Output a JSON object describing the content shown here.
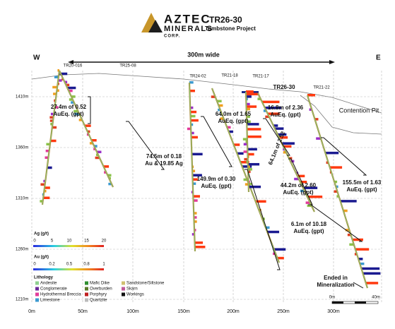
{
  "header": {
    "logo": [
      "AZTEC",
      "MINERALS",
      "CORP."
    ],
    "title": "TR26-30",
    "subtitle": "Tombstone Project"
  },
  "section": {
    "west": "W",
    "east": "E",
    "width_label": "300m wide",
    "elevations": [
      "1410m",
      "1360m",
      "1310m",
      "1260m",
      "1210m"
    ],
    "distances": [
      "0m",
      "50m",
      "100m",
      "150m",
      "200m",
      "250m",
      "300m"
    ],
    "drill_holes": [
      "TR20-016",
      "TR25-08",
      "TR24-02",
      "TR21-18",
      "TR21-17",
      "TR26-30",
      "TR21-22"
    ],
    "pit_label": "Contention Pit",
    "annotations": [
      [
        "27.4m of 0.52",
        "AuEq. (gpt)"
      ],
      [
        "74.5m of 0.18",
        "Au & 19.85 Ag"
      ],
      [
        "64.0m of 1.65",
        "AuEq. (gpt)"
      ],
      [
        "149.9m of 0.30",
        "AuEq. (gpt)"
      ],
      [
        "16.8m of 2.36",
        "AuEq. (gpt)"
      ],
      [
        "64.1m of 2.52"
      ],
      [
        "44.2m of 2.60",
        "AuEq. (gpt)"
      ],
      [
        "155.5m of 1.63",
        "AuEq. (gpt)"
      ],
      [
        "6.1m of 10.18",
        "AuEq. (gpt)"
      ],
      [
        "Ended in",
        "Mineralization"
      ]
    ]
  },
  "legend": {
    "ag_title": "Ag (g/t)",
    "ag_ticks": [
      "0",
      "5",
      "10",
      "15",
      "20"
    ],
    "au_title": "Au (g/t)",
    "au_ticks": [
      "0",
      "0.2",
      "0.5",
      "0.8",
      "1"
    ],
    "lithology_title": "Lithology",
    "lithology": [
      "Andesite",
      "Conglomerate",
      "Hydrothermal Breccia",
      "Limestone",
      "Mafic Dike",
      "Overburden",
      "Porphyry",
      "Quartzite",
      "Sandstone/Siltstone",
      "Skarn",
      "Workings"
    ]
  },
  "scale_bar": {
    "start": "0m",
    "end": "40m"
  }
}
